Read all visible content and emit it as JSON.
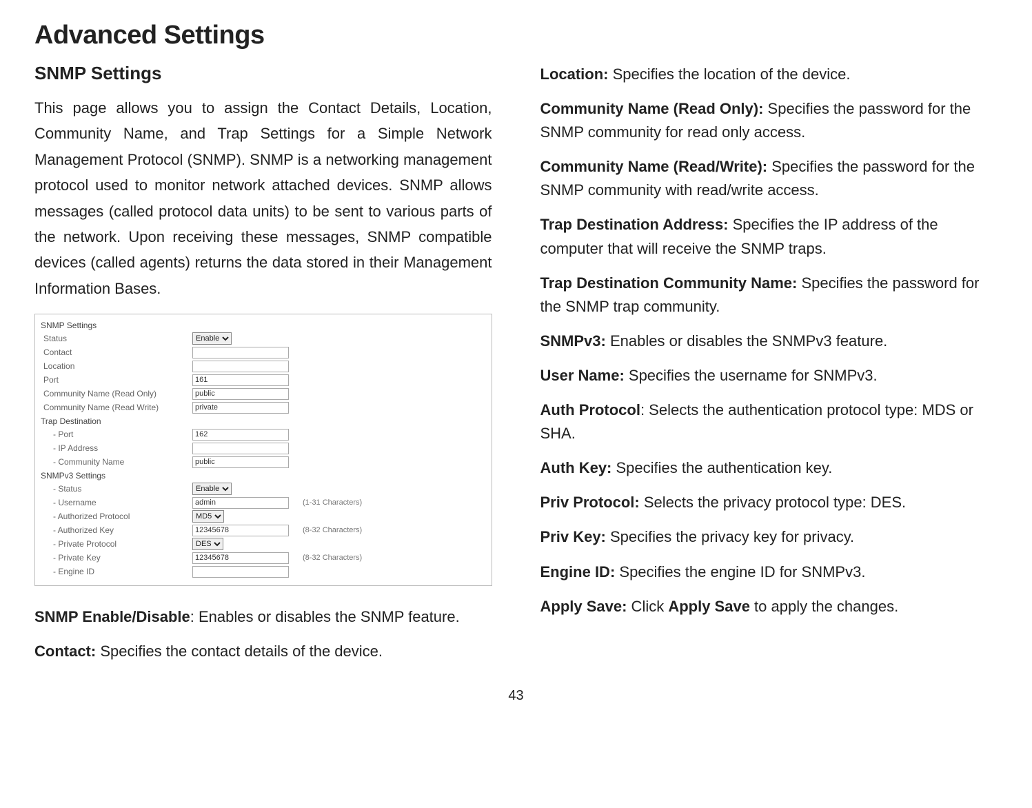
{
  "page": {
    "title": "Advanced Settings",
    "number": "43"
  },
  "left": {
    "heading": "SNMP Settings",
    "intro": "This page allows you to assign the Contact Details, Location, Community Name, and Trap Settings for a Simple Network Management Protocol (SNMP). SNMP is a networking management protocol used to monitor network attached devices. SNMP allows messages (called protocol data units) to be sent to various parts of the network. Upon receiving these messages, SNMP compatible devices (called agents) returns the data stored in their Management Information Bases.",
    "items": [
      {
        "b": "SNMP Enable/Disable",
        "t": ": Enables or disables the SNMP feature."
      },
      {
        "b": "Contact:",
        "t": " Specifies the contact details of the device."
      }
    ]
  },
  "right": {
    "items": [
      {
        "b": "Location:",
        "t": " Specifies the location of the device."
      },
      {
        "b": "Community Name (Read Only):",
        "t": " Specifies the password for the SNMP community for read only access."
      },
      {
        "b": "Community Name (Read/Write):",
        "t": " Specifies the password for the SNMP community with read/write access."
      },
      {
        "b": "Trap Destination Address:",
        "t": " Specifies the IP address of the computer that will receive the SNMP traps."
      },
      {
        "b": "Trap Destination Community Name:",
        "t": " Specifies the password for the SNMP trap community."
      },
      {
        "b": "SNMPv3:",
        "t": " Enables or disables the SNMPv3 feature."
      },
      {
        "b": "User Name:",
        "t": " Specifies the username for SNMPv3."
      },
      {
        "b": "Auth Protocol",
        "t": ": Selects the authentication protocol type: MDS or SHA."
      },
      {
        "b": "Auth Key:",
        "t": " Specifies the authentication key."
      },
      {
        "b": "Priv Protocol:",
        "t": " Selects the privacy protocol type: DES."
      },
      {
        "b": "Priv Key:",
        "t": " Specifies the privacy key for privacy."
      },
      {
        "b": "Engine ID:",
        "t": " Specifies the engine ID for SNMPv3."
      },
      {
        "b": "Apply Save:",
        "t": " Click ",
        "b2": "Apply Save",
        "t2": " to apply the changes."
      }
    ]
  },
  "shot": {
    "title": "SNMP Settings",
    "rows": {
      "status_label": "Status",
      "status_value": "Enable",
      "contact_label": "Contact",
      "contact_value": "",
      "location_label": "Location",
      "location_value": "",
      "port_label": "Port",
      "port_value": "161",
      "commro_label": "Community Name (Read Only)",
      "commro_value": "public",
      "commrw_label": "Community Name (Read Write)",
      "commrw_value": "private",
      "trap_section": "Trap Destination",
      "trap_port_label": "- Port",
      "trap_port_value": "162",
      "trap_ip_label": "- IP Address",
      "trap_ip_value": "",
      "trap_comm_label": "- Community Name",
      "trap_comm_value": "public",
      "v3_section": "SNMPv3 Settings",
      "v3_status_label": "- Status",
      "v3_status_value": "Enable",
      "v3_user_label": "- Username",
      "v3_user_value": "admin",
      "v3_user_note": "(1-31 Characters)",
      "v3_authp_label": "- Authorized Protocol",
      "v3_authp_value": "MD5",
      "v3_authk_label": "- Authorized Key",
      "v3_authk_value": "12345678",
      "v3_authk_note": "(8-32 Characters)",
      "v3_privp_label": "- Private Protocol",
      "v3_privp_value": "DES",
      "v3_privk_label": "- Private Key",
      "v3_privk_value": "12345678",
      "v3_privk_note": "(8-32 Characters)",
      "v3_engine_label": "- Engine ID",
      "v3_engine_value": ""
    }
  }
}
